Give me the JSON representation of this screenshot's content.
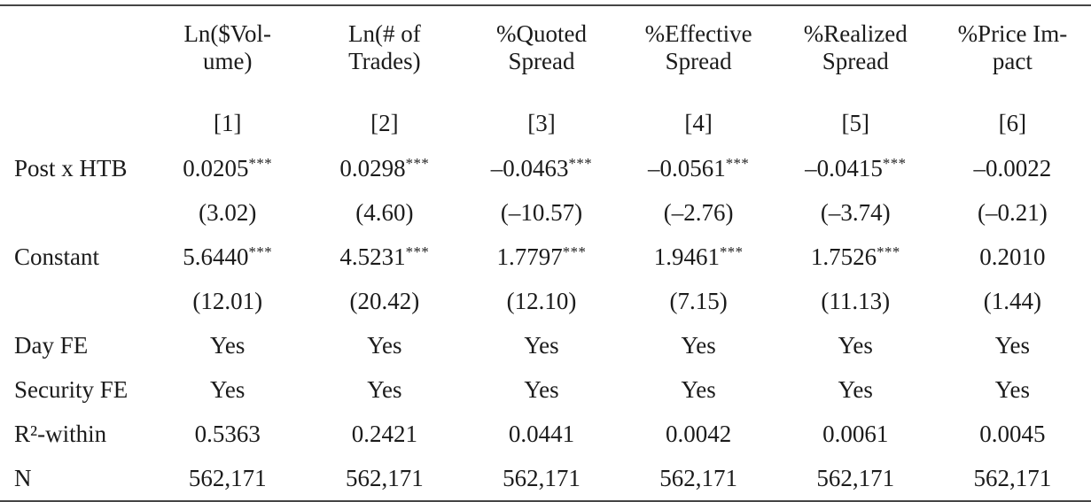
{
  "page": {
    "background_color": "#ffffff",
    "text_color": "#1b1b1b",
    "rule_color": "#454545"
  },
  "table": {
    "corner_label": "",
    "columns": [
      {
        "label_line1": "Ln($Vol-",
        "label_line2": "ume)",
        "number": "[1]"
      },
      {
        "label_line1": "Ln(# of",
        "label_line2": "Trades)",
        "number": "[2]"
      },
      {
        "label_line1": "%Quoted",
        "label_line2": "Spread",
        "number": "[3]"
      },
      {
        "label_line1": "%Effective",
        "label_line2": "Spread",
        "number": "[4]"
      },
      {
        "label_line1": "%Realized",
        "label_line2": "Spread",
        "number": "[5]"
      },
      {
        "label_line1": "%Price Im-",
        "label_line2": "pact",
        "number": "[6]"
      }
    ],
    "rows": [
      {
        "label": "Post x HTB",
        "cells": [
          {
            "text": "0.0205",
            "stars": "***"
          },
          {
            "text": "0.0298",
            "stars": "***"
          },
          {
            "text": "–0.0463",
            "stars": "***"
          },
          {
            "text": "–0.0561",
            "stars": "***"
          },
          {
            "text": "–0.0415",
            "stars": "***"
          },
          {
            "text": "–0.0022",
            "stars": ""
          }
        ]
      },
      {
        "label": "",
        "cells": [
          {
            "text": "(3.02)"
          },
          {
            "text": "(4.60)"
          },
          {
            "text": "(–10.57)"
          },
          {
            "text": "(–2.76)"
          },
          {
            "text": "(–3.74)"
          },
          {
            "text": "(–0.21)"
          }
        ]
      },
      {
        "label": "Constant",
        "cells": [
          {
            "text": "5.6440",
            "stars": "***"
          },
          {
            "text": "4.5231",
            "stars": "***"
          },
          {
            "text": "1.7797",
            "stars": "***"
          },
          {
            "text": "1.9461",
            "stars": "***"
          },
          {
            "text": "1.7526",
            "stars": "***"
          },
          {
            "text": "0.2010",
            "stars": ""
          }
        ]
      },
      {
        "label": "",
        "cells": [
          {
            "text": "(12.01)"
          },
          {
            "text": "(20.42)"
          },
          {
            "text": "(12.10)"
          },
          {
            "text": "(7.15)"
          },
          {
            "text": "(11.13)"
          },
          {
            "text": "(1.44)"
          }
        ]
      },
      {
        "label": "Day FE",
        "cells": [
          {
            "text": "Yes"
          },
          {
            "text": "Yes"
          },
          {
            "text": "Yes"
          },
          {
            "text": "Yes"
          },
          {
            "text": "Yes"
          },
          {
            "text": "Yes"
          }
        ]
      },
      {
        "label": "Security FE",
        "cells": [
          {
            "text": "Yes"
          },
          {
            "text": "Yes"
          },
          {
            "text": "Yes"
          },
          {
            "text": "Yes"
          },
          {
            "text": "Yes"
          },
          {
            "text": "Yes"
          }
        ]
      },
      {
        "label": "R²-within",
        "cells": [
          {
            "text": "0.5363"
          },
          {
            "text": "0.2421"
          },
          {
            "text": "0.0441"
          },
          {
            "text": "0.0042"
          },
          {
            "text": "0.0061"
          },
          {
            "text": "0.0045"
          }
        ]
      },
      {
        "label": "N",
        "cells": [
          {
            "text": "562,171"
          },
          {
            "text": "562,171"
          },
          {
            "text": "562,171"
          },
          {
            "text": "562,171"
          },
          {
            "text": "562,171"
          },
          {
            "text": "562,171"
          }
        ]
      }
    ]
  }
}
